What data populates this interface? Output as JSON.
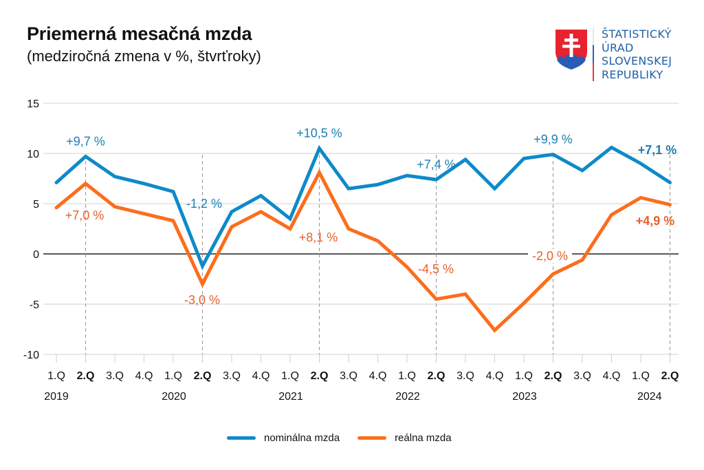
{
  "header": {
    "title": "Priemerná mesačná mzda",
    "subtitle": "(medziročná zmena v %, štvrťroky)"
  },
  "logo": {
    "lines": [
      "ŠTATISTICKÝ",
      "ÚRAD",
      "SLOVENSKEJ",
      "REPUBLIKY"
    ],
    "icon": "slovak-coat-of-arms-icon"
  },
  "chart_data": {
    "type": "line",
    "title": "Priemerná mesačná mzda",
    "subtitle": "(medziročná zmena v %, štvrťroky)",
    "xlabel": "",
    "ylabel": "",
    "ylim": [
      -10,
      15
    ],
    "yticks": [
      -10,
      -5,
      0,
      5,
      10,
      15
    ],
    "grid": true,
    "legend": "bottom-center",
    "categories": [
      "1.Q",
      "2.Q",
      "3.Q",
      "4.Q",
      "1.Q",
      "2.Q",
      "3.Q",
      "4.Q",
      "1.Q",
      "2.Q",
      "3.Q",
      "4.Q",
      "1.Q",
      "2.Q",
      "3.Q",
      "4.Q",
      "1.Q",
      "2.Q",
      "3.Q",
      "4.Q",
      "1.Q",
      "2.Q"
    ],
    "bold_categories": [
      1,
      5,
      9,
      13,
      17,
      21
    ],
    "years": [
      {
        "label": "2019",
        "index": 0
      },
      {
        "label": "2020",
        "index": 4
      },
      {
        "label": "2021",
        "index": 8
      },
      {
        "label": "2022",
        "index": 12
      },
      {
        "label": "2023",
        "index": 16
      },
      {
        "label": "2024",
        "index": 20
      }
    ],
    "series": [
      {
        "name": "nominálna mzda",
        "color": "#0e8ac8",
        "label_color": "#1a7fb3",
        "values": [
          7.1,
          9.7,
          7.7,
          7.0,
          6.2,
          -1.2,
          4.2,
          5.8,
          3.5,
          10.5,
          6.5,
          6.9,
          7.8,
          7.4,
          9.4,
          6.5,
          9.5,
          9.9,
          8.3,
          10.6,
          9.0,
          7.1
        ]
      },
      {
        "name": "reálna mzda",
        "color": "#fc6d1c",
        "label_color": "#e6612a",
        "values": [
          4.6,
          7.0,
          4.7,
          4.0,
          3.3,
          -3.0,
          2.7,
          4.2,
          2.5,
          8.1,
          2.5,
          1.3,
          -1.3,
          -4.5,
          -4.0,
          -7.6,
          -4.9,
          -2.0,
          -0.6,
          3.9,
          5.6,
          4.9
        ]
      }
    ],
    "annotations": [
      {
        "series": 0,
        "index": 1,
        "text": "+9,7 %",
        "bold": false,
        "pos": "above"
      },
      {
        "series": 0,
        "index": 5,
        "text": "-1,2 %",
        "bold": false,
        "pos": "above-right"
      },
      {
        "series": 0,
        "index": 9,
        "text": "+10,5 %",
        "bold": false,
        "pos": "above"
      },
      {
        "series": 0,
        "index": 13,
        "text": "+7,4 %",
        "bold": false,
        "pos": "above"
      },
      {
        "series": 0,
        "index": 17,
        "text": "+9,9 %",
        "bold": false,
        "pos": "above"
      },
      {
        "series": 0,
        "index": 21,
        "text": "+7,1 %",
        "bold": true,
        "pos": "above-left"
      },
      {
        "series": 1,
        "index": 1,
        "text": "+7,0 %",
        "bold": false,
        "pos": "below"
      },
      {
        "series": 1,
        "index": 5,
        "text": "-3,0 %",
        "bold": false,
        "pos": "below"
      },
      {
        "series": 1,
        "index": 9,
        "text": "+8,1 %",
        "bold": false,
        "pos": "below"
      },
      {
        "series": 1,
        "index": 13,
        "text": "-4,5 %",
        "bold": false,
        "pos": "above"
      },
      {
        "series": 1,
        "index": 17,
        "text": "-2,0 %",
        "bold": false,
        "pos": "above"
      },
      {
        "series": 1,
        "index": 21,
        "text": "+4,9 %",
        "bold": true,
        "pos": "below-left"
      }
    ]
  }
}
